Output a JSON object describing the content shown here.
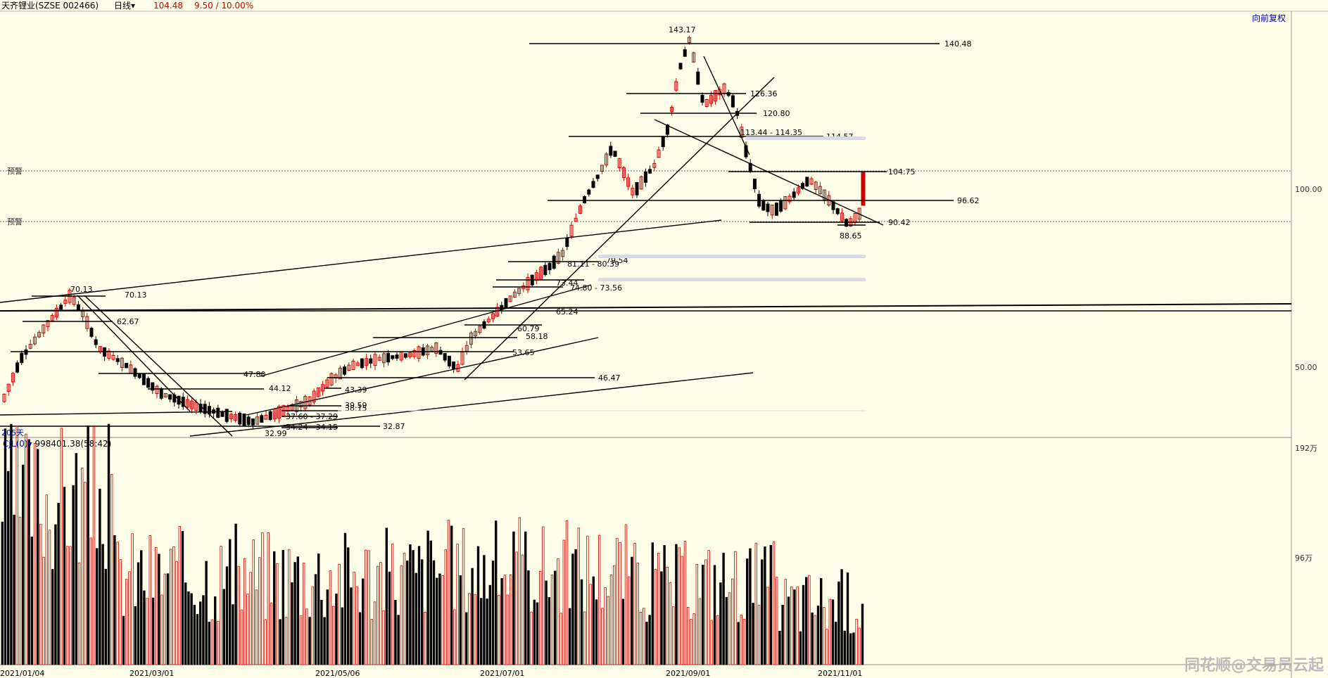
{
  "header": {
    "symbol": "天齐锂业(SZSE 002466)",
    "period": "日线",
    "price": "104.48",
    "change": "9.50 / 10.00%"
  },
  "adjust_label": "向前复权",
  "alert_label": "预警",
  "range_label": "205天",
  "volume_panel": {
    "indicator": "CJL(0)",
    "value": "998401.38(58:42)",
    "axis_top": "192万",
    "axis_mid": "96万"
  },
  "price_axis": [
    "100.00",
    "50.00"
  ],
  "dates": [
    "2021/01/04",
    "2021/03/01",
    "2021/05/06",
    "2021/07/01",
    "2021/09/01",
    "2021/11/01"
  ],
  "levels": [
    "140.48",
    "126.36",
    "120.80",
    "113.44 - 114.35",
    "114.57",
    "104.75",
    "96.62",
    "90.42",
    "88.65",
    "81.11 - 80.39",
    "79.54",
    "73.44",
    "74.80 - 73.56",
    "70.13",
    "65.24",
    "62.67",
    "60.79",
    "58.18",
    "53.65",
    "47.80",
    "46.47",
    "44.12",
    "43.39",
    "39.59",
    "38.15",
    "37.60 - 37.29",
    "34.24 - 34.15",
    "32.87",
    "32.99"
  ],
  "peak_labels": [
    "143.17",
    "70.13"
  ],
  "watermark": "同花顺@交易员云起",
  "colors": {
    "up": "#D00000",
    "down": "#000000",
    "bg": "#FFFEE8"
  },
  "chart_data": {
    "type": "candlestick",
    "y_scale": "log",
    "ylim": [
      30,
      150
    ],
    "x": [
      "2021/01/04",
      "2021/03/01",
      "2021/05/06",
      "2021/07/01",
      "2021/09/01",
      "2021/11/01"
    ],
    "annotated_high": 143.17,
    "annotated_low": 32.99,
    "last_close": 104.48
  }
}
